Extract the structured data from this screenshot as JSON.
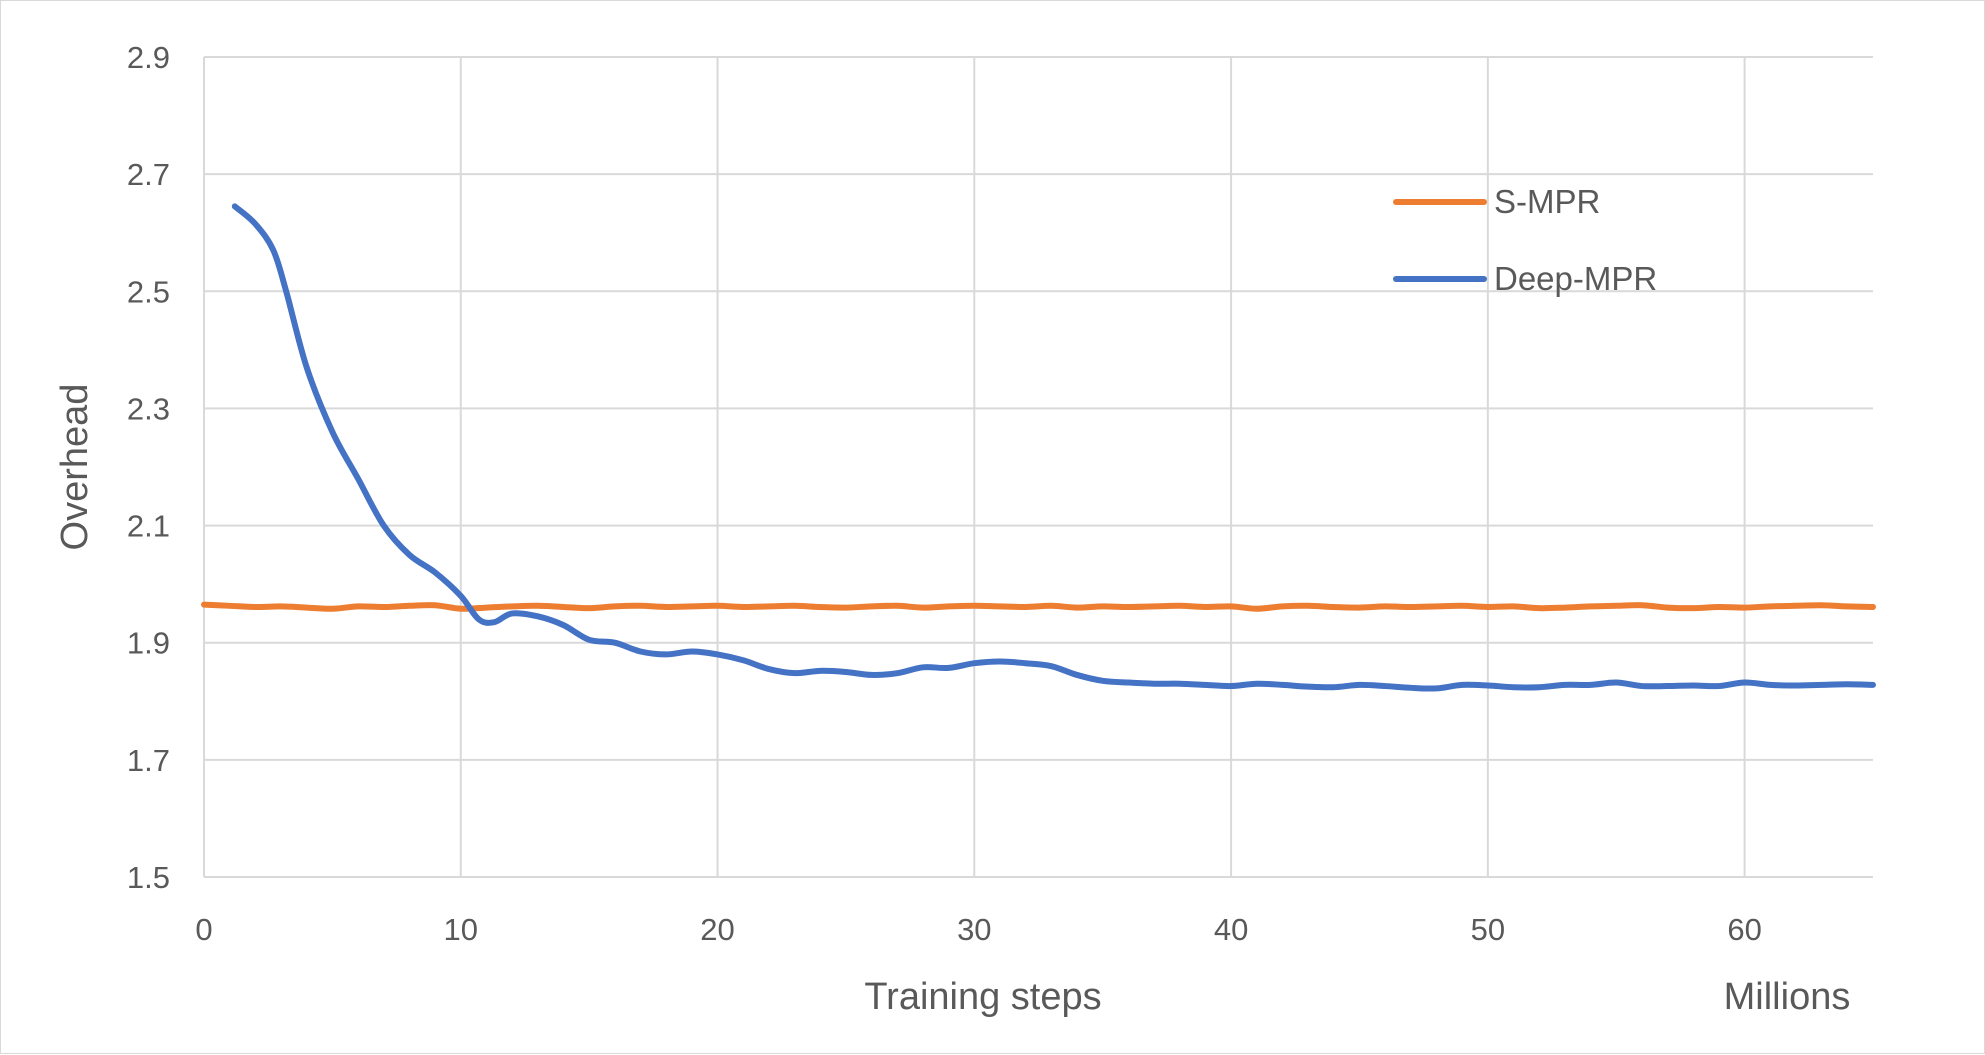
{
  "chart_data": {
    "type": "line",
    "title": "",
    "xlabel": "Training steps",
    "x_unit_label": "Millions",
    "ylabel": "Overhead",
    "xlim": [
      0,
      65
    ],
    "ylim": [
      1.5,
      2.9
    ],
    "x_ticks": [
      0,
      10,
      20,
      30,
      40,
      50,
      60
    ],
    "y_ticks": [
      1.5,
      1.7,
      1.9,
      2.1,
      2.3,
      2.5,
      2.7,
      2.9
    ],
    "y_tick_labels": [
      "1.5",
      "1.7",
      "1.9",
      "2.1",
      "2.3",
      "2.5",
      "2.7",
      "2.9"
    ],
    "grid": true,
    "legend_position": "top-right",
    "series": [
      {
        "name": "S-MPR",
        "color": "#ED7D31",
        "x": [
          0,
          1,
          2,
          3,
          4,
          5,
          6,
          7,
          8,
          9,
          10,
          11,
          12,
          13,
          14,
          15,
          16,
          17,
          18,
          19,
          20,
          21,
          22,
          23,
          24,
          25,
          26,
          27,
          28,
          29,
          30,
          31,
          32,
          33,
          34,
          35,
          36,
          37,
          38,
          39,
          40,
          41,
          42,
          43,
          44,
          45,
          46,
          47,
          48,
          49,
          50,
          51,
          52,
          53,
          54,
          55,
          56,
          57,
          58,
          59,
          60,
          61,
          62,
          63,
          64,
          65
        ],
        "y": [
          1.965,
          1.963,
          1.961,
          1.962,
          1.96,
          1.958,
          1.962,
          1.961,
          1.963,
          1.964,
          1.958,
          1.96,
          1.962,
          1.963,
          1.961,
          1.959,
          1.962,
          1.963,
          1.961,
          1.962,
          1.963,
          1.961,
          1.962,
          1.963,
          1.961,
          1.96,
          1.962,
          1.963,
          1.96,
          1.962,
          1.963,
          1.962,
          1.961,
          1.963,
          1.96,
          1.962,
          1.961,
          1.962,
          1.963,
          1.961,
          1.962,
          1.958,
          1.962,
          1.963,
          1.961,
          1.96,
          1.962,
          1.961,
          1.962,
          1.963,
          1.961,
          1.962,
          1.959,
          1.96,
          1.962,
          1.963,
          1.964,
          1.96,
          1.959,
          1.961,
          1.96,
          1.962,
          1.963,
          1.964,
          1.962,
          1.961
        ]
      },
      {
        "name": "Deep-MPR",
        "color": "#4472C4",
        "x": [
          1.2,
          2,
          2.7,
          3.2,
          4,
          5,
          6,
          7,
          8,
          9,
          10,
          10.7,
          11.3,
          12,
          13,
          14,
          15,
          16,
          17,
          18,
          19,
          20,
          21,
          22,
          23,
          24,
          25,
          26,
          27,
          28,
          29,
          30,
          31,
          32,
          33,
          34,
          35,
          36,
          37,
          38,
          39,
          40,
          41,
          42,
          43,
          44,
          45,
          46,
          47,
          48,
          49,
          50,
          51,
          52,
          53,
          54,
          55,
          56,
          57,
          58,
          59,
          60,
          61,
          62,
          63,
          64,
          65
        ],
        "y": [
          2.645,
          2.615,
          2.57,
          2.5,
          2.37,
          2.26,
          2.18,
          2.1,
          2.05,
          2.02,
          1.98,
          1.94,
          1.935,
          1.95,
          1.945,
          1.93,
          1.905,
          1.9,
          1.885,
          1.88,
          1.885,
          1.88,
          1.87,
          1.855,
          1.848,
          1.852,
          1.85,
          1.845,
          1.848,
          1.858,
          1.857,
          1.865,
          1.868,
          1.865,
          1.86,
          1.845,
          1.835,
          1.832,
          1.83,
          1.83,
          1.828,
          1.826,
          1.83,
          1.828,
          1.825,
          1.824,
          1.828,
          1.826,
          1.823,
          1.822,
          1.828,
          1.827,
          1.824,
          1.824,
          1.828,
          1.828,
          1.832,
          1.826,
          1.826,
          1.827,
          1.826,
          1.832,
          1.828,
          1.827,
          1.828,
          1.829,
          1.828
        ]
      }
    ]
  }
}
